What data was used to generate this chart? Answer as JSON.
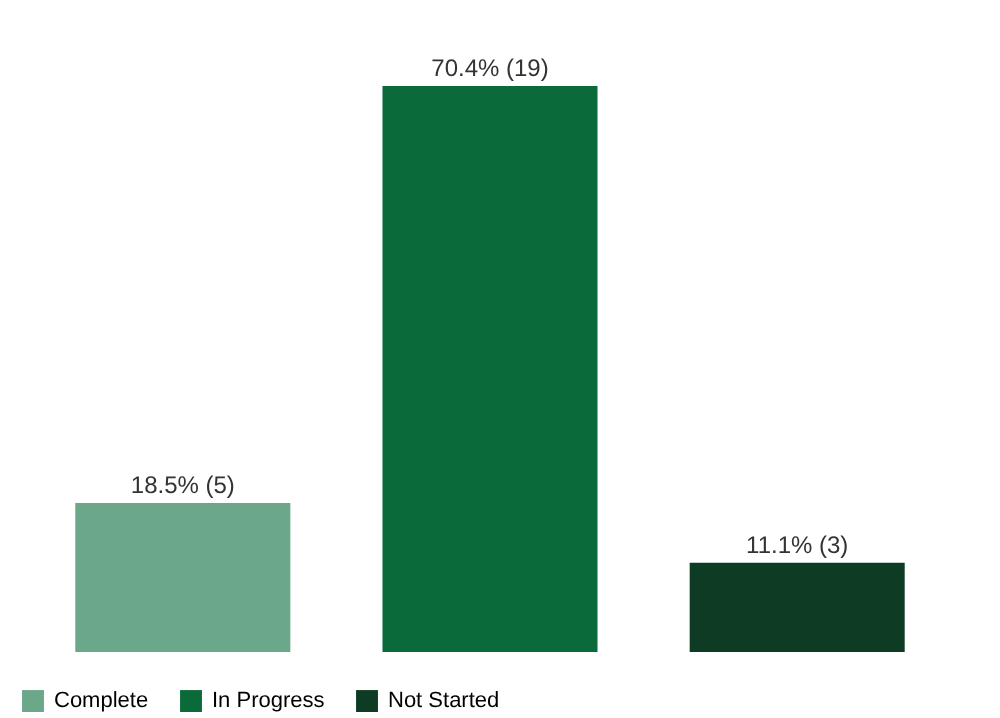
{
  "chart_data": {
    "type": "bar",
    "categories": [
      null,
      null,
      null
    ],
    "series": [
      {
        "name": "Complete",
        "color": "#6aa889",
        "values": [
          5,
          null,
          null
        ],
        "value_labels": [
          "18.5% (5)",
          null,
          null
        ]
      },
      {
        "name": "In Progress",
        "color": "#0b6a3a",
        "values": [
          null,
          19,
          null
        ],
        "value_labels": [
          null,
          "70.4% (19)",
          null
        ]
      },
      {
        "name": "Not Started",
        "color": "#0e3b24",
        "values": [
          null,
          null,
          3
        ],
        "value_labels": [
          null,
          null,
          "11.1% (3)"
        ]
      }
    ],
    "stacked": true,
    "legend": "bottom",
    "tick_labels": false
  }
}
